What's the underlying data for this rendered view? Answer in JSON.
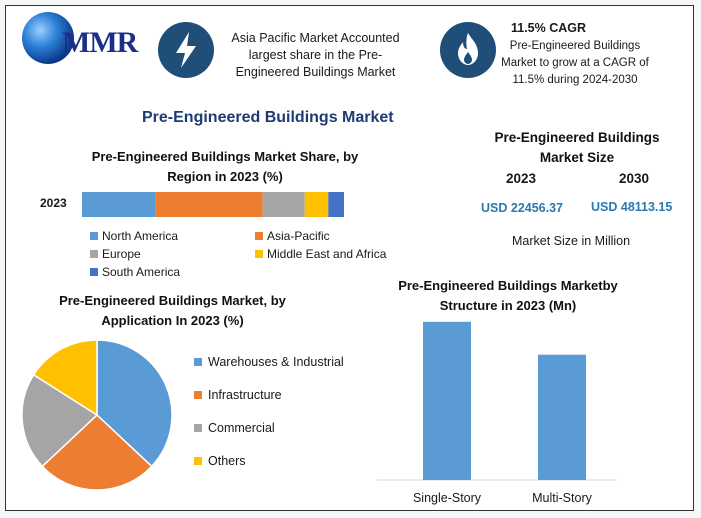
{
  "logo": {
    "text": "MMR"
  },
  "header": {
    "region_text": "Asia Pacific Market Accounted largest share in the Pre-Engineered Buildings Market",
    "cagr_title": "11.5% CAGR",
    "cagr_text": "Pre-Engineered Buildings Market to grow at a CAGR of 11.5% during 2024-2030"
  },
  "main_title": "Pre-Engineered Buildings Market",
  "market_size": {
    "title": "Pre-Engineered Buildings Market Size",
    "year1": "2023",
    "year2": "2030",
    "value1": "USD 22456.37",
    "value2": "USD 48113.15",
    "unit_note": "Market Size in Million"
  },
  "chart_data": [
    {
      "type": "bar",
      "orientation": "horizontal-stacked",
      "title": "Pre-Engineered Buildings Market Share, by Region in 2023 (%)",
      "categories": [
        "2023"
      ],
      "series": [
        {
          "name": "North America",
          "values": [
            28
          ],
          "color": "#5b9bd5"
        },
        {
          "name": "Asia-Pacific",
          "values": [
            41
          ],
          "color": "#ed7d31"
        },
        {
          "name": "Europe",
          "values": [
            16
          ],
          "color": "#a5a5a5"
        },
        {
          "name": "Middle East and Africa",
          "values": [
            9
          ],
          "color": "#ffc000"
        },
        {
          "name": "South America",
          "values": [
            6
          ],
          "color": "#4472c4"
        }
      ]
    },
    {
      "type": "pie",
      "title": "Pre-Engineered Buildings Market, by Application In 2023 (%)",
      "slices": [
        {
          "name": "Warehouses & Industrial",
          "value": 37,
          "color": "#5b9bd5"
        },
        {
          "name": "Infrastructure",
          "value": 26,
          "color": "#ed7d31"
        },
        {
          "name": "Commercial",
          "value": 21,
          "color": "#a5a5a5"
        },
        {
          "name": "Others",
          "value": 16,
          "color": "#ffc000"
        }
      ]
    },
    {
      "type": "bar",
      "title": "Pre-Engineered Buildings Marketby Structure in 2023 (Mn)",
      "categories": [
        "Single-Story",
        "Multi-Story"
      ],
      "values": [
        12500,
        9900
      ],
      "ylim": [
        0,
        12800
      ],
      "color": "#5b9bd5",
      "grid": false
    }
  ]
}
